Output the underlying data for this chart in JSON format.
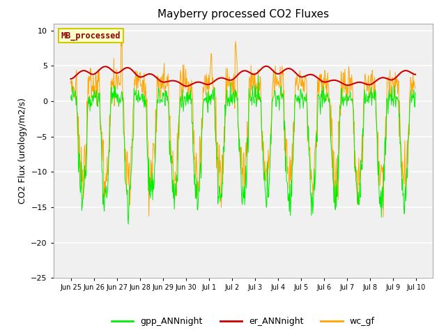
{
  "title": "Mayberry processed CO2 Fluxes",
  "ylabel": "CO2 Flux (urology/m2/s)",
  "ylim": [
    -25,
    11
  ],
  "yticks": [
    -25,
    -20,
    -15,
    -10,
    -5,
    0,
    5,
    10
  ],
  "fig_bg_color": "#ffffff",
  "plot_bg_color": "#f0f0f0",
  "grid_color": "#e0e0e0",
  "legend_label": "MB_processed",
  "legend_text_color": "#8b0000",
  "legend_bg": "#ffffcc",
  "legend_edge": "#cccc00",
  "line_gpp": "#00ee00",
  "line_er": "#cc0000",
  "line_wc": "#ffa500",
  "n_points": 720,
  "n_days": 15
}
